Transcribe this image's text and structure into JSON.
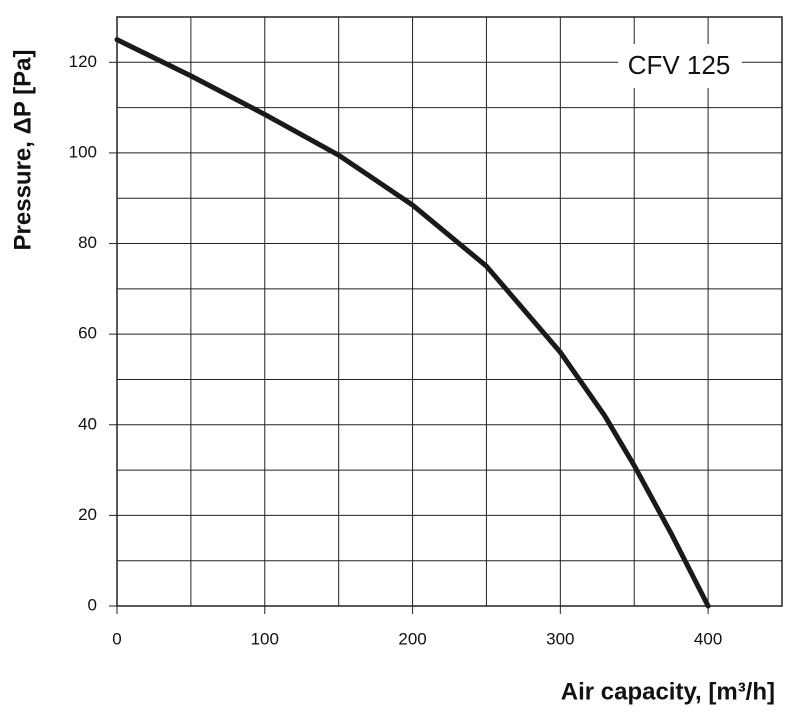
{
  "chart_data": {
    "type": "line",
    "annotation": "CFV 125",
    "xlabel": "Air capacity, [m³/h]",
    "ylabel": "Pressure, ΔP [Pa]",
    "x": [
      0,
      50,
      100,
      150,
      200,
      250,
      300,
      330,
      350,
      375,
      400
    ],
    "series": [
      {
        "color": "#1a1a1a",
        "values": [
          125,
          117,
          108.5,
          99.5,
          88.5,
          75,
          56,
          42,
          31,
          16,
          0
        ]
      }
    ],
    "xlim": [
      0,
      450
    ],
    "xticks": [
      0,
      100,
      200,
      300,
      400
    ],
    "xminor": [
      50,
      150,
      250,
      350,
      450
    ],
    "ylim": [
      0,
      130
    ],
    "yticks": [
      0,
      20,
      40,
      60,
      80,
      100,
      120
    ],
    "yminor": [
      10,
      30,
      50,
      70,
      90,
      110,
      130
    ],
    "grid": true
  }
}
